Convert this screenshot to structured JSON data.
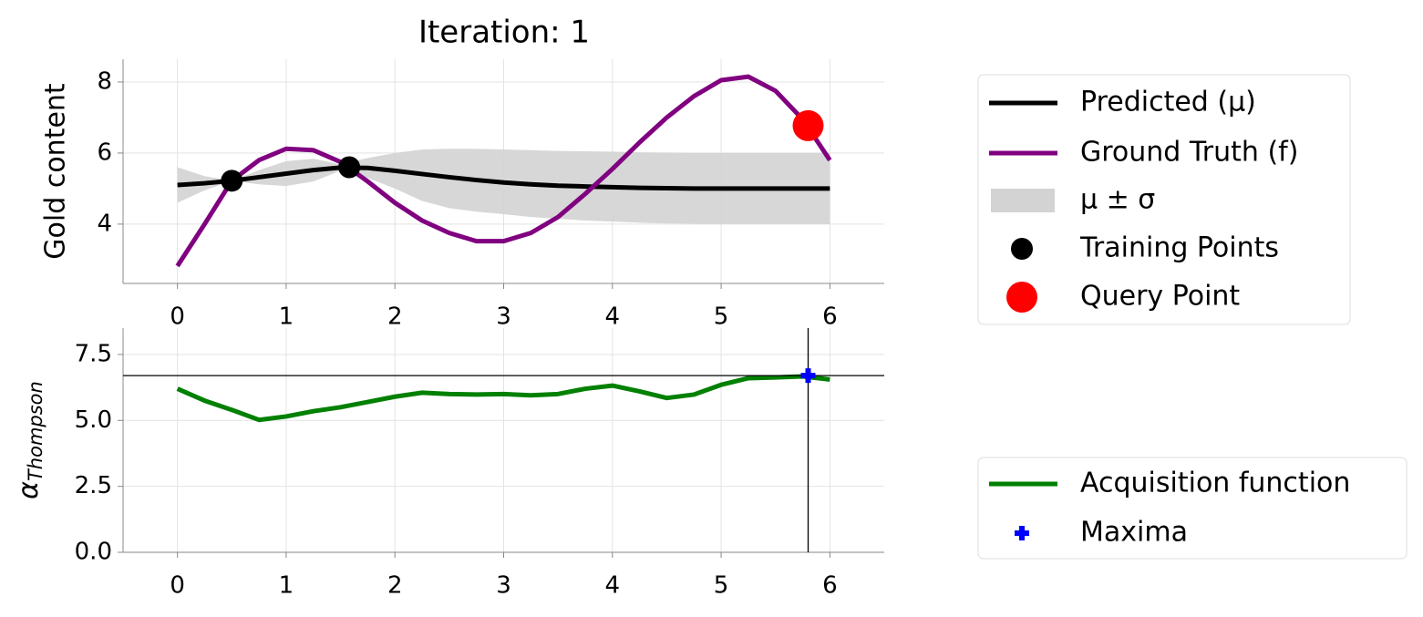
{
  "chart_data": [
    {
      "type": "line",
      "title": "Iteration: 1",
      "ylabel": "Gold content",
      "x": [
        0,
        0.25,
        0.5,
        0.75,
        1,
        1.25,
        1.5,
        1.75,
        2,
        2.25,
        2.5,
        2.75,
        3,
        3.25,
        3.5,
        3.75,
        4,
        4.25,
        4.5,
        4.75,
        5,
        5.25,
        5.5,
        5.75,
        6
      ],
      "series": [
        {
          "name": "Predicted (μ)",
          "color": "#000000",
          "values": [
            5.1,
            5.15,
            5.22,
            5.32,
            5.42,
            5.52,
            5.59,
            5.58,
            5.5,
            5.41,
            5.32,
            5.24,
            5.17,
            5.12,
            5.08,
            5.06,
            5.04,
            5.02,
            5.01,
            5.0,
            5.0,
            5.0,
            5.0,
            5.0,
            5.0
          ]
        },
        {
          "name": "Ground Truth (f)",
          "color": "#800080",
          "values": [
            2.82,
            4.0,
            5.22,
            5.8,
            6.12,
            6.08,
            5.75,
            5.2,
            4.6,
            4.1,
            3.75,
            3.52,
            3.52,
            3.75,
            4.2,
            4.85,
            5.55,
            6.3,
            7.0,
            7.6,
            8.05,
            8.15,
            7.75,
            6.95,
            5.8
          ]
        }
      ],
      "band": {
        "name": "μ ± σ",
        "color": "#d3d3d3",
        "lower": [
          4.6,
          4.95,
          5.22,
          5.12,
          5.07,
          5.2,
          5.5,
          5.3,
          5.0,
          4.65,
          4.45,
          4.35,
          4.28,
          4.2,
          4.15,
          4.1,
          4.07,
          4.04,
          4.02,
          4.01,
          4.0,
          4.0,
          4.0,
          4.0,
          4.0
        ],
        "upper": [
          5.6,
          5.35,
          5.22,
          5.52,
          5.77,
          5.84,
          5.68,
          5.86,
          6.0,
          6.1,
          6.12,
          6.12,
          6.1,
          6.08,
          6.06,
          6.05,
          6.04,
          6.02,
          6.01,
          6.0,
          6.0,
          6.0,
          6.0,
          6.0,
          6.0
        ]
      },
      "points": [
        {
          "name": "Training Points",
          "color": "#000000",
          "x": [
            0.5,
            1.58
          ],
          "y": [
            5.22,
            5.6
          ]
        },
        {
          "name": "Query Point",
          "color": "#ff0000",
          "x": [
            5.8
          ],
          "y": [
            6.77
          ]
        }
      ],
      "xlim": [
        -0.5,
        6.5
      ],
      "ylim": [
        2.33,
        8.64
      ],
      "xticks": [
        0,
        1,
        2,
        3,
        4,
        5,
        6
      ],
      "yticks": [
        4,
        6,
        8
      ],
      "grid": true,
      "legend": "outside right"
    },
    {
      "type": "line",
      "ylabel": {
        "symbol": "α",
        "subscript": "Thompson"
      },
      "x": [
        0,
        0.25,
        0.5,
        0.75,
        1,
        1.25,
        1.5,
        1.75,
        2,
        2.25,
        2.5,
        2.75,
        3,
        3.25,
        3.5,
        3.75,
        4,
        4.25,
        4.5,
        4.75,
        5,
        5.25,
        5.5,
        5.75,
        6
      ],
      "series": [
        {
          "name": "Acquisition function",
          "color": "#008000",
          "values": [
            6.2,
            5.75,
            5.4,
            5.02,
            5.15,
            5.35,
            5.5,
            5.7,
            5.9,
            6.05,
            6.0,
            5.98,
            6.0,
            5.95,
            6.0,
            6.2,
            6.32,
            6.1,
            5.85,
            5.98,
            6.35,
            6.6,
            6.63,
            6.67,
            6.55
          ]
        }
      ],
      "maxima": {
        "name": "Maxima",
        "color": "#0000ff",
        "x": 5.8,
        "y": 6.7
      },
      "xlim": [
        -0.5,
        6.5
      ],
      "ylim": [
        0,
        8.5
      ],
      "xticks": [
        0,
        1,
        2,
        3,
        4,
        5,
        6
      ],
      "yticks": [
        {
          "value": 0,
          "label": "0.0"
        },
        {
          "value": 2.5,
          "label": "2.5"
        },
        {
          "value": 5,
          "label": "5.0"
        },
        {
          "value": 7.5,
          "label": "7.5"
        }
      ],
      "grid": true,
      "legend": "outside right"
    }
  ]
}
